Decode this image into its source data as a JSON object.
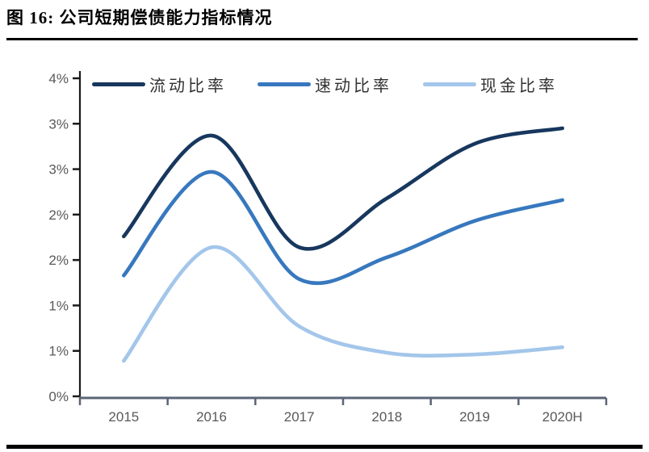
{
  "figure": {
    "title": "图 16:  公司短期偿债能力指标情况"
  },
  "chart_data": {
    "type": "line",
    "title": "公司短期偿债能力指标情况",
    "categories": [
      "2015",
      "2016",
      "2017",
      "2018",
      "2019",
      "2020H"
    ],
    "series": [
      {
        "key": "current-ratio",
        "name": "流动比率",
        "color": "#17375E",
        "values": [
          1.76,
          2.87,
          1.64,
          2.18,
          2.78,
          2.95
        ]
      },
      {
        "key": "quick-ratio",
        "name": "速动比率",
        "color": "#3778BE",
        "values": [
          1.33,
          2.47,
          1.29,
          1.53,
          1.93,
          2.16
        ]
      },
      {
        "key": "cash-ratio",
        "name": "现金比率",
        "color": "#A3C6EA",
        "values": [
          0.39,
          1.64,
          0.77,
          0.48,
          0.46,
          0.54
        ]
      }
    ],
    "y_axis": {
      "min": 0,
      "max": 3.5,
      "step": 0.5,
      "tick_labels_bottom_to_top": [
        "0%",
        "1%",
        "1%",
        "2%",
        "2%",
        "3%",
        "3%",
        "4%"
      ]
    },
    "x_axis": {
      "tick_labels": [
        "2015",
        "2016",
        "2017",
        "2018",
        "2019",
        "2020H"
      ]
    },
    "legend_position": "top",
    "grid": false,
    "smooth": true
  },
  "colors": {
    "y_axis_line": "#1A1A1A",
    "x_axis_line": "#5B6577",
    "tick_label_text": "#595959",
    "legend_text": "#303030",
    "title_text": "#000000",
    "rule": "#000000"
  }
}
